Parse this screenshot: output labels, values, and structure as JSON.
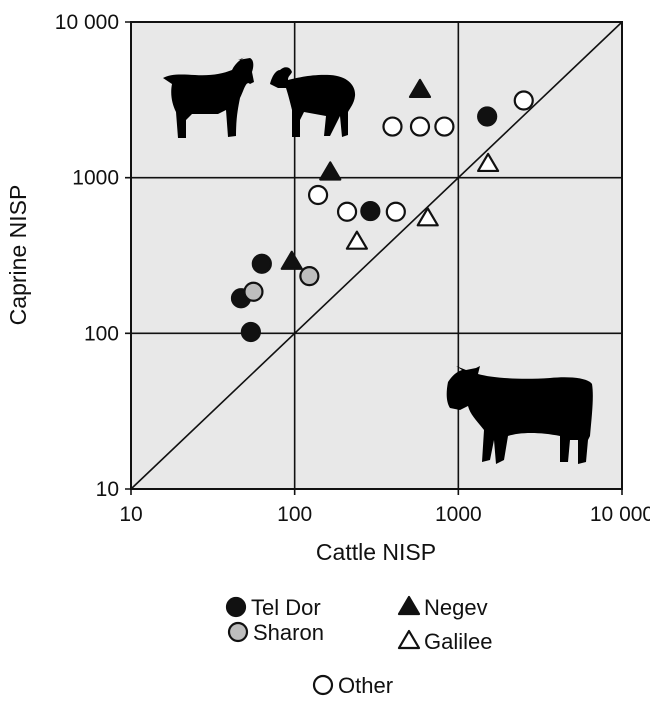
{
  "chart_data": {
    "type": "scatter",
    "xlabel": "Cattle NISP",
    "ylabel": "Caprine NISP",
    "xscale": "log",
    "yscale": "log",
    "xlim": [
      10,
      10000
    ],
    "ylim": [
      10,
      10000
    ],
    "xticks": [
      {
        "v": 10,
        "label": "10"
      },
      {
        "v": 100,
        "label": "100"
      },
      {
        "v": 1000,
        "label": "1000"
      },
      {
        "v": 10000,
        "label": "10 000"
      }
    ],
    "yticks": [
      {
        "v": 10,
        "label": "10"
      },
      {
        "v": 100,
        "label": "100"
      },
      {
        "v": 1000,
        "label": "1000"
      },
      {
        "v": 10000,
        "label": "10 000"
      }
    ],
    "grid": true,
    "background": "#e8e8e8",
    "reference_line": "y = x",
    "legend_position": "bottom",
    "series": [
      {
        "name": "Tel Dor",
        "marker": "circle",
        "fill": "#111111",
        "points": [
          [
            1500,
            2470
          ],
          [
            290,
            610
          ],
          [
            63,
            280
          ],
          [
            47,
            168
          ],
          [
            54,
            102
          ]
        ]
      },
      {
        "name": "Sharon",
        "marker": "circle",
        "fill": "#bdbdbd",
        "points": [
          [
            56,
            185
          ],
          [
            123,
            233
          ]
        ]
      },
      {
        "name": "Negev",
        "marker": "triangle",
        "fill": "#111111",
        "points": [
          [
            583,
            3660
          ],
          [
            165,
            1080
          ],
          [
            96,
            288
          ]
        ]
      },
      {
        "name": "Galilee",
        "marker": "triangle",
        "fill": "#ffffff",
        "points": [
          [
            1520,
            1225
          ],
          [
            650,
            548
          ],
          [
            240,
            388
          ]
        ]
      },
      {
        "name": "Other",
        "marker": "circle",
        "fill": "#ffffff",
        "points": [
          [
            2510,
            3130
          ],
          [
            396,
            2130
          ],
          [
            583,
            2130
          ],
          [
            822,
            2130
          ],
          [
            139,
            774
          ],
          [
            209,
            604
          ],
          [
            415,
            604
          ]
        ]
      }
    ],
    "illustrations": [
      "goat-silhouette",
      "sheep-silhouette",
      "cow-silhouette"
    ]
  }
}
